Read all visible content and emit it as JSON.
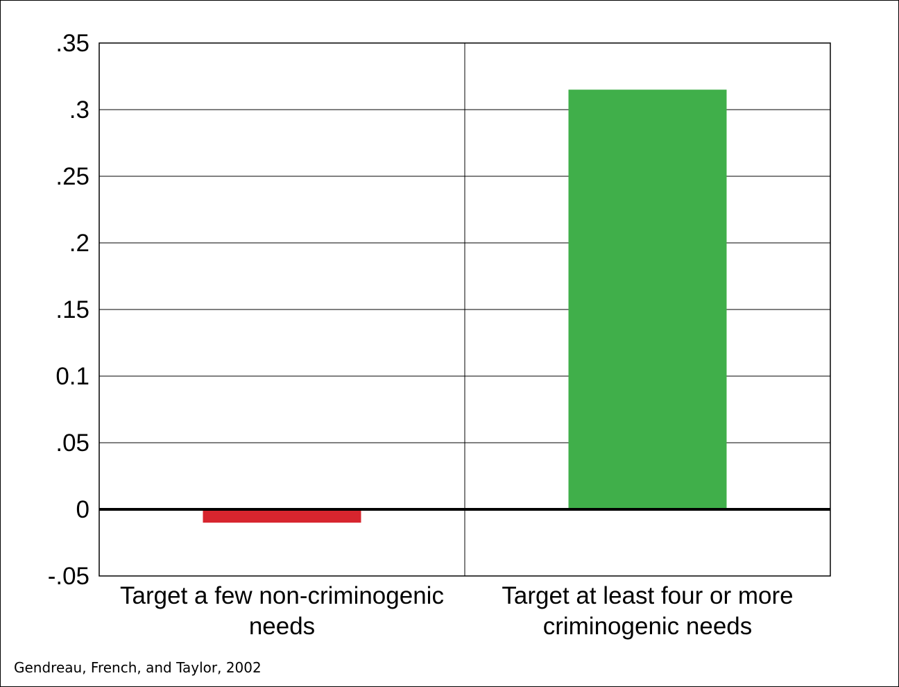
{
  "chart_data": {
    "type": "bar",
    "categories": [
      [
        "Target a few non-criminogenic",
        "needs"
      ],
      [
        "Target at least four or more",
        "criminogenic needs"
      ]
    ],
    "values": [
      -0.01,
      0.315
    ],
    "colors": [
      "#d7252e",
      "#40af4a"
    ],
    "ylim": [
      -0.05,
      0.35
    ],
    "yticks": [
      {
        "value": 0.35,
        "label": ".35"
      },
      {
        "value": 0.3,
        "label": ".3"
      },
      {
        "value": 0.25,
        "label": ".25"
      },
      {
        "value": 0.2,
        "label": ".2"
      },
      {
        "value": 0.15,
        "label": ".15"
      },
      {
        "value": 0.1,
        "label": "0.1"
      },
      {
        "value": 0.05,
        "label": ".05"
      },
      {
        "value": 0,
        "label": "0"
      },
      {
        "value": -0.05,
        "label": "-.05"
      }
    ],
    "grid": true,
    "title": "",
    "xlabel": "",
    "ylabel": ""
  },
  "source": "Gendreau, French, and Taylor, 2002"
}
